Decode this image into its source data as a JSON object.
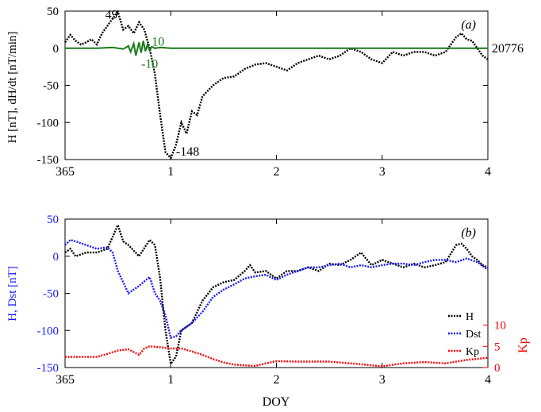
{
  "colors": {
    "H": "#000000",
    "dHdt": "#1a7a1a",
    "Dst": "#1a1aff",
    "Kp": "#ff0000",
    "axis": "#000000"
  },
  "chart_data": [
    {
      "panel_label": "(a)",
      "type": "line",
      "ylabel": "H [nT], dH/dt [nT/min]",
      "xlim": [
        0,
        4
      ],
      "ylim": [
        -150,
        50
      ],
      "x_ticks": [
        "365",
        "1",
        "2",
        "3",
        "4"
      ],
      "y_ticks": [
        50,
        0,
        -50,
        -100,
        -150
      ],
      "annotations": [
        {
          "text": "49",
          "x": 0.5,
          "y": 46,
          "series": "H"
        },
        {
          "text": "-148",
          "x": 1.05,
          "y": -138,
          "series": "H"
        },
        {
          "text": "10",
          "x": 0.82,
          "y": 10,
          "series": "dH/dt"
        },
        {
          "text": "-10",
          "x": 0.72,
          "y": -20,
          "series": "dH/dt"
        },
        {
          "text": "20776",
          "side": "right",
          "y": 0
        }
      ],
      "series": [
        {
          "name": "H",
          "style": "dotted",
          "color_key": "H",
          "x": [
            0.0,
            0.05,
            0.1,
            0.15,
            0.2,
            0.25,
            0.3,
            0.35,
            0.4,
            0.45,
            0.5,
            0.55,
            0.6,
            0.65,
            0.7,
            0.75,
            0.8,
            0.85,
            0.9,
            0.95,
            1.0,
            1.05,
            1.1,
            1.15,
            1.2,
            1.25,
            1.3,
            1.4,
            1.5,
            1.6,
            1.7,
            1.8,
            1.9,
            2.0,
            2.1,
            2.2,
            2.3,
            2.4,
            2.5,
            2.6,
            2.7,
            2.8,
            2.9,
            3.0,
            3.1,
            3.2,
            3.3,
            3.4,
            3.5,
            3.6,
            3.7,
            3.75,
            3.8,
            3.85,
            3.9,
            3.95,
            4.0
          ],
          "y": [
            8,
            18,
            10,
            5,
            8,
            12,
            5,
            20,
            30,
            40,
            49,
            25,
            30,
            20,
            35,
            25,
            0,
            -35,
            -90,
            -140,
            -148,
            -130,
            -100,
            -115,
            -85,
            -90,
            -65,
            -50,
            -40,
            -38,
            -28,
            -22,
            -20,
            -25,
            -30,
            -20,
            -15,
            -10,
            -15,
            -10,
            0,
            -5,
            -15,
            -20,
            -5,
            -10,
            -5,
            -5,
            -10,
            -5,
            15,
            20,
            12,
            10,
            0,
            -10,
            -15
          ]
        },
        {
          "name": "dH/dt",
          "style": "solid",
          "color_key": "dHdt",
          "x": [
            0.0,
            0.3,
            0.45,
            0.55,
            0.6,
            0.62,
            0.65,
            0.67,
            0.7,
            0.72,
            0.74,
            0.76,
            0.78,
            0.8,
            0.82,
            0.85,
            0.9,
            1.0,
            2.0,
            3.0,
            4.0
          ],
          "y": [
            0,
            0,
            1,
            -1,
            3,
            -5,
            6,
            -10,
            8,
            -6,
            10,
            -4,
            5,
            -3,
            2,
            0,
            1,
            0,
            0,
            0,
            0
          ]
        }
      ]
    },
    {
      "panel_label": "(b)",
      "type": "line",
      "ylabel": "H, Dst [nT]",
      "ylabel_right": "Kp",
      "xlabel": "DOY",
      "xlim": [
        0,
        4
      ],
      "ylim": [
        -150,
        50
      ],
      "y2lim": [
        0,
        35
      ],
      "x_ticks": [
        "365",
        "1",
        "2",
        "3",
        "4"
      ],
      "y_ticks": [
        50,
        0,
        -50,
        -100,
        -150
      ],
      "y2_ticks": [
        10,
        5,
        0
      ],
      "legend": [
        "H",
        "Dst",
        "Kp"
      ],
      "legend_position": "bottom-right",
      "series": [
        {
          "name": "H",
          "style": "dotted",
          "color_key": "H",
          "x": [
            0.0,
            0.05,
            0.1,
            0.2,
            0.3,
            0.4,
            0.5,
            0.55,
            0.6,
            0.7,
            0.8,
            0.85,
            0.9,
            0.95,
            1.0,
            1.05,
            1.1,
            1.2,
            1.3,
            1.4,
            1.5,
            1.6,
            1.7,
            1.75,
            1.8,
            1.9,
            2.0,
            2.1,
            2.2,
            2.3,
            2.4,
            2.5,
            2.6,
            2.7,
            2.8,
            2.9,
            3.0,
            3.1,
            3.2,
            3.3,
            3.4,
            3.5,
            3.6,
            3.7,
            3.75,
            3.8,
            3.85,
            3.9,
            3.95,
            4.0
          ],
          "y": [
            5,
            10,
            0,
            5,
            5,
            10,
            42,
            20,
            15,
            0,
            22,
            15,
            -30,
            -100,
            -145,
            -135,
            -100,
            -90,
            -60,
            -42,
            -35,
            -32,
            -20,
            -12,
            -22,
            -20,
            -30,
            -20,
            -20,
            -15,
            -20,
            -10,
            -12,
            -5,
            5,
            -12,
            -5,
            -10,
            -15,
            -10,
            -15,
            -12,
            -8,
            15,
            17,
            10,
            0,
            -5,
            -12,
            -15
          ]
        },
        {
          "name": "Dst",
          "style": "dotted",
          "color_key": "Dst",
          "x": [
            0.0,
            0.05,
            0.1,
            0.2,
            0.3,
            0.4,
            0.45,
            0.5,
            0.55,
            0.6,
            0.7,
            0.8,
            0.85,
            0.9,
            0.95,
            1.0,
            1.05,
            1.1,
            1.2,
            1.3,
            1.4,
            1.5,
            1.6,
            1.7,
            1.8,
            1.9,
            2.0,
            2.1,
            2.2,
            2.3,
            2.4,
            2.5,
            2.6,
            2.7,
            2.8,
            2.9,
            3.0,
            3.1,
            3.2,
            3.3,
            3.4,
            3.5,
            3.6,
            3.7,
            3.8,
            3.9,
            4.0
          ],
          "y": [
            15,
            22,
            20,
            15,
            10,
            12,
            5,
            -20,
            -35,
            -50,
            -40,
            -28,
            -50,
            -60,
            -80,
            -110,
            -108,
            -100,
            -90,
            -75,
            -55,
            -45,
            -38,
            -30,
            -27,
            -25,
            -32,
            -25,
            -20,
            -15,
            -15,
            -12,
            -10,
            -15,
            -12,
            -15,
            -12,
            -10,
            -10,
            -12,
            -8,
            -5,
            -5,
            -8,
            -3,
            -8,
            -18
          ]
        },
        {
          "name": "Kp",
          "axis": "right",
          "style": "dotted",
          "color_key": "Kp",
          "x": [
            0.0,
            0.3,
            0.4,
            0.5,
            0.6,
            0.7,
            0.75,
            0.8,
            0.9,
            1.0,
            1.1,
            1.2,
            1.3,
            1.4,
            1.5,
            1.6,
            1.7,
            1.8,
            1.9,
            2.0,
            2.2,
            2.5,
            2.7,
            3.0,
            3.2,
            3.4,
            3.6,
            3.8,
            4.0
          ],
          "y": [
            2.5,
            2.5,
            3.2,
            4.0,
            4.3,
            3.0,
            4.5,
            5.0,
            4.8,
            4.5,
            4.5,
            3.8,
            3.0,
            2.0,
            1.2,
            0.7,
            0.5,
            0.4,
            1.0,
            1.5,
            1.4,
            1.4,
            1.0,
            0.3,
            1.0,
            1.3,
            1.0,
            1.8,
            2.3
          ]
        }
      ]
    }
  ]
}
